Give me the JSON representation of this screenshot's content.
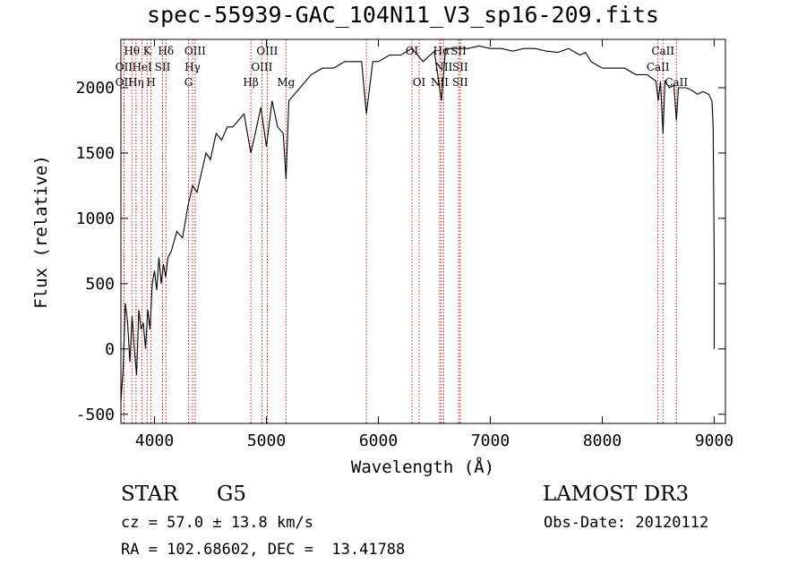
{
  "chart_data": {
    "type": "line",
    "title": "spec-55939-GAC_104N11_V3_sp16-209.fits",
    "xlabel": "Wavelength (Å)",
    "ylabel": "Flux (relative)",
    "xlim": [
      3700,
      9100
    ],
    "ylim": [
      -570,
      2370
    ],
    "xticks": [
      4000,
      5000,
      6000,
      7000,
      8000,
      9000
    ],
    "yticks": [
      -500,
      0,
      500,
      1000,
      1500,
      2000
    ],
    "series": [
      {
        "name": "flux",
        "x": [
          3700,
          3720,
          3740,
          3760,
          3780,
          3800,
          3820,
          3840,
          3860,
          3880,
          3900,
          3920,
          3940,
          3960,
          3980,
          4000,
          4020,
          4040,
          4060,
          4080,
          4100,
          4120,
          4150,
          4200,
          4250,
          4300,
          4340,
          4380,
          4420,
          4460,
          4500,
          4550,
          4600,
          4650,
          4700,
          4750,
          4800,
          4861,
          4900,
          4950,
          5000,
          5050,
          5100,
          5150,
          5175,
          5200,
          5250,
          5300,
          5400,
          5500,
          5600,
          5700,
          5800,
          5850,
          5893,
          5950,
          6000,
          6100,
          6200,
          6300,
          6400,
          6500,
          6563,
          6600,
          6700,
          6800,
          6900,
          7000,
          7100,
          7200,
          7300,
          7400,
          7500,
          7600,
          7700,
          7800,
          7850,
          7900,
          8000,
          8100,
          8200,
          8300,
          8400,
          8480,
          8500,
          8520,
          8542,
          8560,
          8600,
          8640,
          8662,
          8680,
          8700,
          8750,
          8800,
          8850,
          8900,
          8950,
          8980,
          8990,
          9000,
          9000
        ],
        "y": [
          -400,
          -150,
          350,
          200,
          -100,
          250,
          0,
          -200,
          300,
          150,
          200,
          0,
          300,
          150,
          500,
          600,
          450,
          700,
          500,
          650,
          550,
          700,
          750,
          900,
          850,
          1100,
          1250,
          1200,
          1350,
          1500,
          1450,
          1650,
          1600,
          1700,
          1700,
          1750,
          1800,
          1500,
          1650,
          1850,
          1550,
          1900,
          1700,
          1650,
          1300,
          1900,
          1950,
          2000,
          2100,
          2150,
          2150,
          2200,
          2200,
          2200,
          1800,
          2200,
          2200,
          2250,
          2250,
          2300,
          2200,
          2280,
          1900,
          2300,
          2300,
          2300,
          2320,
          2300,
          2300,
          2280,
          2300,
          2300,
          2280,
          2270,
          2300,
          2250,
          2270,
          2200,
          2150,
          2150,
          2150,
          2100,
          2100,
          2050,
          1900,
          2050,
          1650,
          2050,
          2000,
          2020,
          1750,
          2000,
          2000,
          2000,
          1980,
          1950,
          1970,
          1950,
          1900,
          1700,
          700,
          0
        ]
      }
    ],
    "lines": [
      {
        "label": "Hθ",
        "wl": 3798,
        "row": 1
      },
      {
        "label": "OII",
        "wl": 3727,
        "row": 2
      },
      {
        "label": "OII",
        "wl": 3727,
        "row": 3
      },
      {
        "label": "Hη",
        "wl": 3835,
        "row": 3
      },
      {
        "label": "HeI",
        "wl": 3889,
        "row": 2
      },
      {
        "label": "K",
        "wl": 3934,
        "row": 1
      },
      {
        "label": "SII",
        "wl": 4072,
        "row": 2
      },
      {
        "label": "H",
        "wl": 3969,
        "row": 3
      },
      {
        "label": "Hδ",
        "wl": 4102,
        "row": 1
      },
      {
        "label": "OIII",
        "wl": 4363,
        "row": 1
      },
      {
        "label": "Hγ",
        "wl": 4340,
        "row": 2
      },
      {
        "label": "G",
        "wl": 4304,
        "row": 3
      },
      {
        "label": "OIII",
        "wl": 5007,
        "row": 1
      },
      {
        "label": "OIII",
        "wl": 4959,
        "row": 2
      },
      {
        "label": "Hβ",
        "wl": 4861,
        "row": 3
      },
      {
        "label": "Mg",
        "wl": 5175,
        "row": 3
      },
      {
        "label": "OI",
        "wl": 6300,
        "row": 1
      },
      {
        "label": "OI",
        "wl": 6364,
        "row": 3
      },
      {
        "label": "Hα",
        "wl": 6563,
        "row": 1
      },
      {
        "label": "NII",
        "wl": 6583,
        "row": 2
      },
      {
        "label": "NII",
        "wl": 6548,
        "row": 3
      },
      {
        "label": "SII",
        "wl": 6716,
        "row": 1
      },
      {
        "label": "SII",
        "wl": 6731,
        "row": 2
      },
      {
        "label": "SII",
        "wl": 6731,
        "row": 3
      },
      {
        "label": "CaII",
        "wl": 8542,
        "row": 1
      },
      {
        "label": "CaII",
        "wl": 8498,
        "row": 2
      },
      {
        "label": "CaII",
        "wl": 8662,
        "row": 3
      },
      {
        "label": "",
        "wl": 5893,
        "row": 0
      }
    ]
  },
  "info": {
    "class_label": "STAR",
    "subclass_label": "G5",
    "survey": "LAMOST DR3",
    "redshift": "cz = 57.0 ± 13.8 km/s",
    "obs_date": "Obs-Date: 20120112",
    "coords": "RA = 102.68602, DEC =  13.41788"
  },
  "colors": {
    "line_marker": "#cc0000",
    "spectrum": "#000000"
  }
}
